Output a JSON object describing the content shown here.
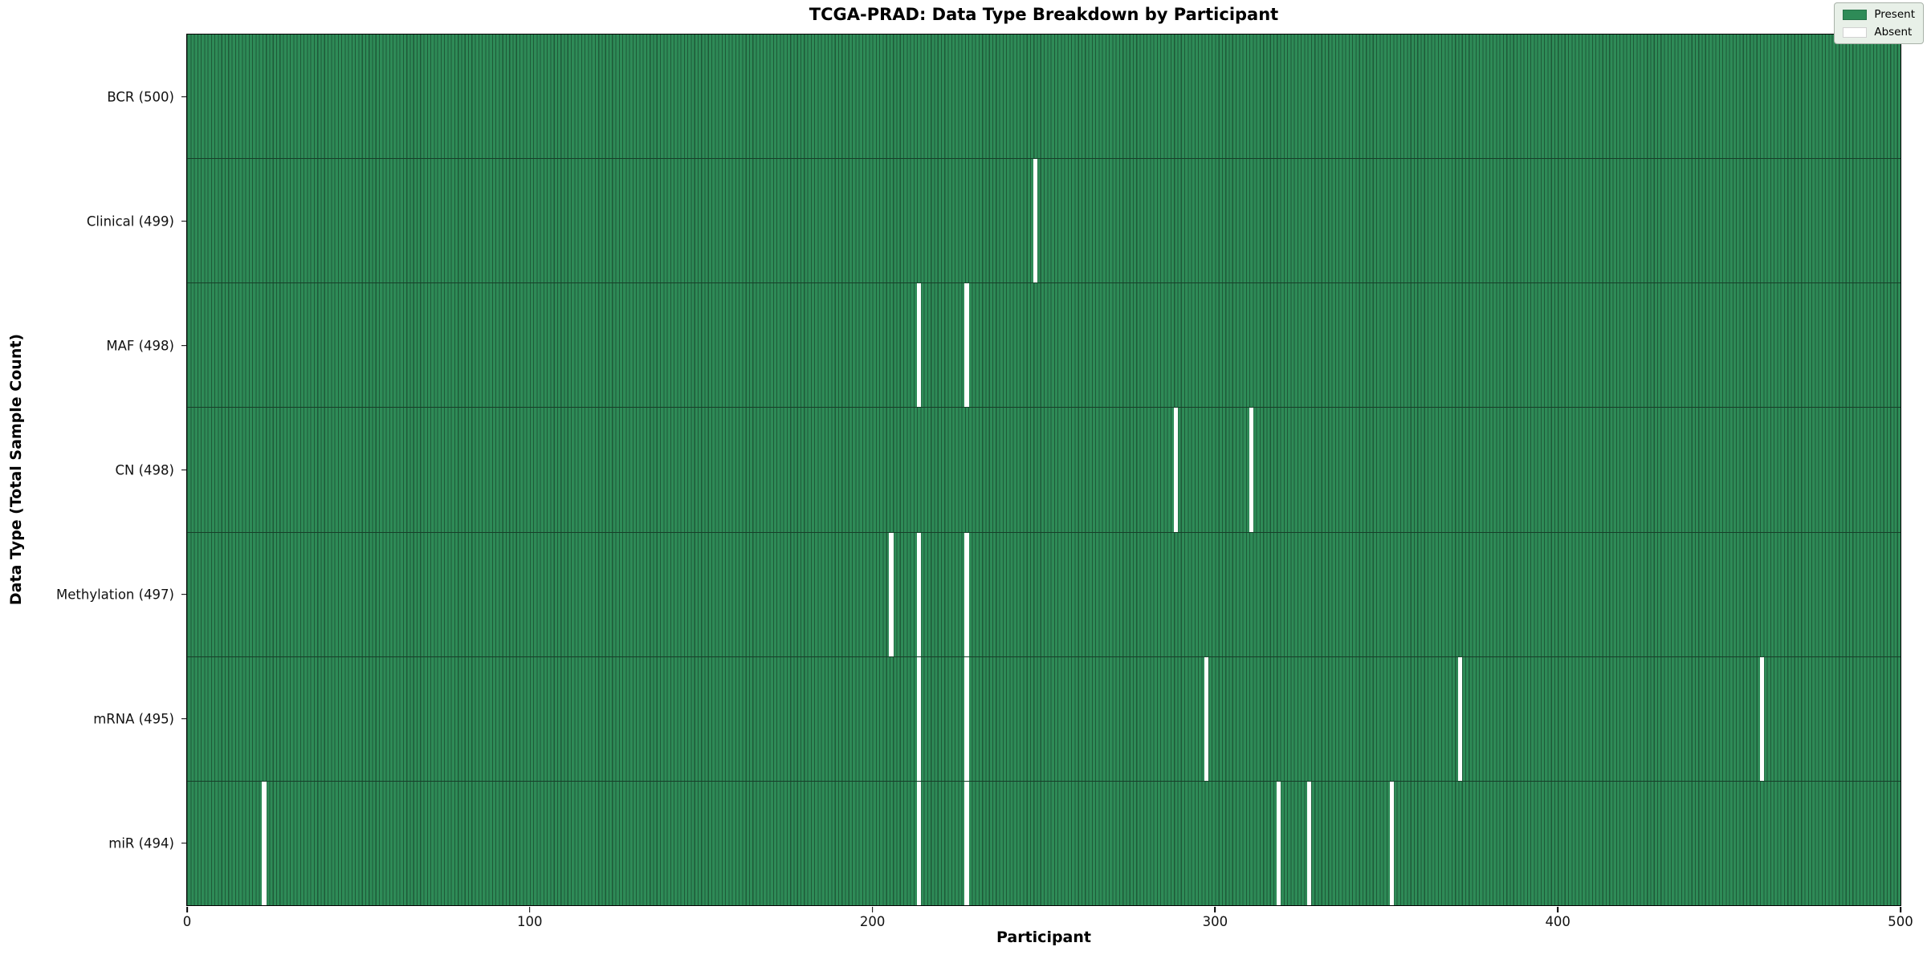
{
  "chart_data": {
    "type": "heatmap",
    "title": "TCGA-PRAD: Data Type Breakdown by Participant",
    "xlabel": "Participant",
    "ylabel": "Data Type (Total Sample Count)",
    "x_range": [
      0,
      500
    ],
    "x_ticks": [
      0,
      100,
      200,
      300,
      400,
      500
    ],
    "n_participants": 500,
    "grid": false,
    "legend_position": "upper right",
    "colors": {
      "present": "#2e8b57",
      "absent": "#ffffff",
      "cell_edge": "#1e5a38"
    },
    "legend": [
      {
        "label": "Present",
        "color": "#2e8b57"
      },
      {
        "label": "Absent",
        "color": "#ffffff"
      }
    ],
    "rows": [
      {
        "label": "BCR",
        "total_present": 500,
        "tick_label": "BCR (500)",
        "absent_participants": []
      },
      {
        "label": "Clinical",
        "total_present": 499,
        "tick_label": "Clinical (499)",
        "absent_participants": [
          247
        ]
      },
      {
        "label": "MAF",
        "total_present": 498,
        "tick_label": "MAF (498)",
        "absent_participants": [
          213,
          227
        ]
      },
      {
        "label": "CN",
        "total_present": 498,
        "tick_label": "CN (498)",
        "absent_participants": [
          288,
          310
        ]
      },
      {
        "label": "Methylation",
        "total_present": 497,
        "tick_label": "Methylation (497)",
        "absent_participants": [
          205,
          213,
          227
        ]
      },
      {
        "label": "mRNA",
        "total_present": 495,
        "tick_label": "mRNA (495)",
        "absent_participants": [
          213,
          227,
          297,
          371,
          459
        ]
      },
      {
        "label": "miR",
        "total_present": 494,
        "tick_label": "miR (494)",
        "absent_participants": [
          22,
          213,
          227,
          318,
          327,
          351
        ]
      }
    ]
  }
}
